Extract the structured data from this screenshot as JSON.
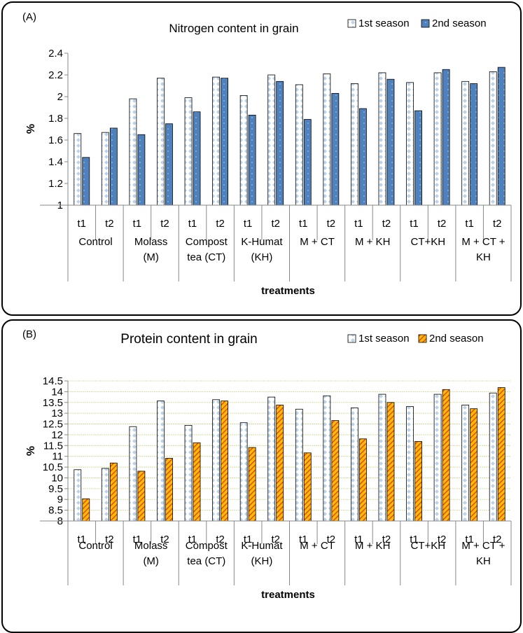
{
  "chart_data": [
    {
      "panel_label": "(A)",
      "type": "bar",
      "title": "Nitrogen content in grain",
      "xlabel": "treatments",
      "ylabel": "%",
      "ylim": [
        1,
        2.4
      ],
      "yticks": [
        "1",
        "1.2",
        "1.4",
        "1.6",
        "1.8",
        "2",
        "2.2",
        "2.4"
      ],
      "grid": false,
      "legend_position": "top-right",
      "groups": [
        "Control",
        "Molass (M)",
        "Compost tea (CT)",
        "K-Humat (KH)",
        "M + CT",
        "M + KH",
        "CT+KH",
        "M + CT + KH"
      ],
      "categories": [
        "t1",
        "t2",
        "t1",
        "t2",
        "t1",
        "t2",
        "t1",
        "t2",
        "t1",
        "t2",
        "t1",
        "t2",
        "t1",
        "t2",
        "t1",
        "t2"
      ],
      "series": [
        {
          "name": "1st season",
          "color": "#ffffff",
          "pattern": "white with light blue diamond dots",
          "values": [
            1.66,
            1.67,
            1.98,
            2.17,
            1.99,
            2.18,
            2.01,
            2.2,
            2.11,
            2.21,
            2.12,
            2.22,
            2.13,
            2.22,
            2.14,
            2.23
          ]
        },
        {
          "name": "2nd season",
          "color": "#4f81bd",
          "pattern": "blue solid with dots",
          "values": [
            1.44,
            1.71,
            1.65,
            1.75,
            1.86,
            2.17,
            1.83,
            2.14,
            1.79,
            2.03,
            1.89,
            2.16,
            1.87,
            2.25,
            2.12,
            2.27
          ]
        }
      ]
    },
    {
      "panel_label": "(B)",
      "type": "bar",
      "title": "Protein content in grain",
      "xlabel": "treatments",
      "ylabel": "%",
      "ylim": [
        8,
        14.5
      ],
      "yticks": [
        "8",
        "8.5",
        "9",
        "9.5",
        "10",
        "10.5",
        "11",
        "11.5",
        "12",
        "12.5",
        "13",
        "13.5",
        "14",
        "14.5"
      ],
      "grid": true,
      "legend_position": "top-right",
      "groups": [
        "Control",
        "Molass (M)",
        "Compost tea (CT)",
        "K-Humat (KH)",
        "M + CT",
        "M + KH",
        "CT+KH",
        "M + CT + KH"
      ],
      "categories": [
        "t1",
        "t2",
        "t1",
        "t2",
        "t1",
        "t2",
        "t1",
        "t2",
        "t1",
        "t2",
        "t1",
        "t2",
        "t1",
        "t2",
        "t1",
        "t2"
      ],
      "series": [
        {
          "name": "1st season",
          "color": "#ffffff",
          "pattern": "white with light blue diamond dots",
          "values": [
            10.38,
            10.44,
            12.38,
            13.57,
            12.44,
            13.63,
            12.56,
            13.75,
            13.19,
            13.81,
            13.25,
            13.88,
            13.31,
            13.88,
            13.38,
            13.94
          ]
        },
        {
          "name": "2nd season",
          "color": "#ffc000",
          "pattern": "yellow with red diagonal hatching",
          "values": [
            9.03,
            10.69,
            10.31,
            10.91,
            11.63,
            13.57,
            11.41,
            13.38,
            11.16,
            12.66,
            11.81,
            13.5,
            11.69,
            14.1,
            13.21,
            14.19
          ]
        }
      ]
    }
  ]
}
